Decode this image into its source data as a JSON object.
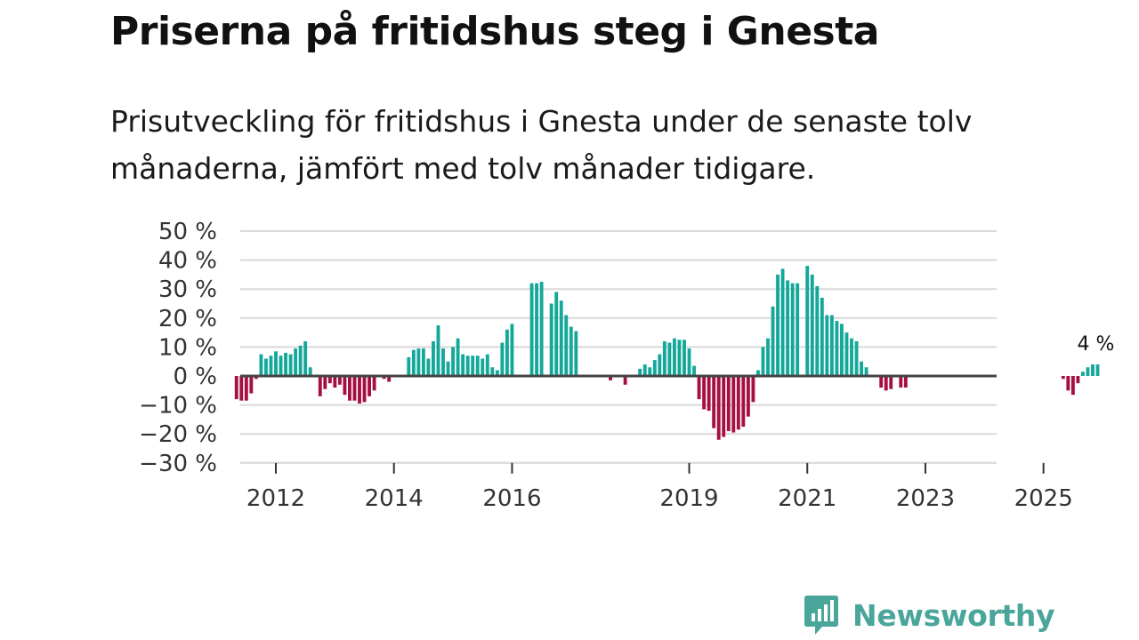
{
  "header": {
    "title": "Priserna på fritidshus steg i Gnesta",
    "subtitle": "Prisutveckling för fritidshus i Gnesta under de senaste tolv månaderna, jämfört med tolv månader tidigare."
  },
  "brand": {
    "name": "Newsworthy"
  },
  "colors": {
    "positive": "#14a89a",
    "negative": "#a50f44",
    "zero_line": "#444444",
    "grid": "#d9d9d9",
    "brand": "#4aa59b"
  },
  "chart_data": {
    "type": "bar",
    "title": "Priserna på fritidshus steg i Gnesta",
    "xlabel": "",
    "ylabel": "",
    "ylim": [
      -30,
      50
    ],
    "y_ticks": [
      50,
      40,
      30,
      20,
      10,
      0,
      -10,
      -20,
      -30
    ],
    "y_tick_labels": [
      "50 %",
      "40 %",
      "30 %",
      "20 %",
      "10 %",
      "0 %",
      "−10 %",
      "−20 %",
      "−30 %"
    ],
    "x_ticks": [
      "2012",
      "2014",
      "2016",
      "2019",
      "2021",
      "2023",
      "2025"
    ],
    "x_tick_positions": [
      2012,
      2014,
      2016,
      2019,
      2021,
      2023,
      2025
    ],
    "start_year": 2011,
    "start_month": 5,
    "bar_width_months": 0.7,
    "annotation": {
      "text": "4 %",
      "value": 4
    },
    "values": [
      -8,
      -8.5,
      -8.5,
      -6,
      -1,
      7.5,
      6,
      7,
      8.5,
      7,
      8,
      7.5,
      9.5,
      10.5,
      12,
      3,
      0,
      -7,
      -4.5,
      -2.5,
      -4,
      -3,
      -6.5,
      -8.5,
      -8.5,
      -9.5,
      -9,
      -7,
      -5,
      0,
      -1,
      -2,
      0,
      0,
      0,
      6.5,
      9,
      9.5,
      9.5,
      6,
      12,
      17.5,
      9.5,
      5,
      10,
      13,
      7.5,
      7,
      7,
      7,
      6,
      7.5,
      3,
      2,
      11.5,
      16,
      18,
      0,
      0,
      0,
      32,
      32,
      32.5,
      0,
      25,
      29,
      26,
      21,
      17,
      15.5,
      0,
      0,
      0,
      0,
      0,
      0,
      -1.5,
      0,
      0,
      -3,
      0,
      0,
      2.5,
      4,
      3,
      5.5,
      7.5,
      12,
      11.5,
      13,
      12.5,
      12.5,
      9.5,
      3.5,
      -8,
      -11.5,
      -12,
      -18,
      -22,
      -21,
      -19,
      -19.5,
      -18.5,
      -17.5,
      -14,
      -9,
      2,
      10,
      13,
      24,
      35,
      37,
      33,
      32,
      32,
      0,
      38,
      35,
      31,
      27,
      21,
      21,
      19,
      18,
      15,
      13,
      12,
      5,
      3,
      0,
      0,
      -4,
      -5,
      -4.5,
      0,
      -4,
      -4,
      0,
      0,
      0,
      0,
      0,
      0,
      0,
      0,
      0,
      0,
      0,
      0,
      0,
      0,
      0,
      0,
      0,
      0,
      0,
      0,
      0,
      0,
      0,
      0,
      0,
      0,
      0,
      0,
      0,
      0,
      0,
      -1,
      -5,
      -6.5,
      -2.5,
      1.5,
      3,
      4,
      4
    ]
  }
}
